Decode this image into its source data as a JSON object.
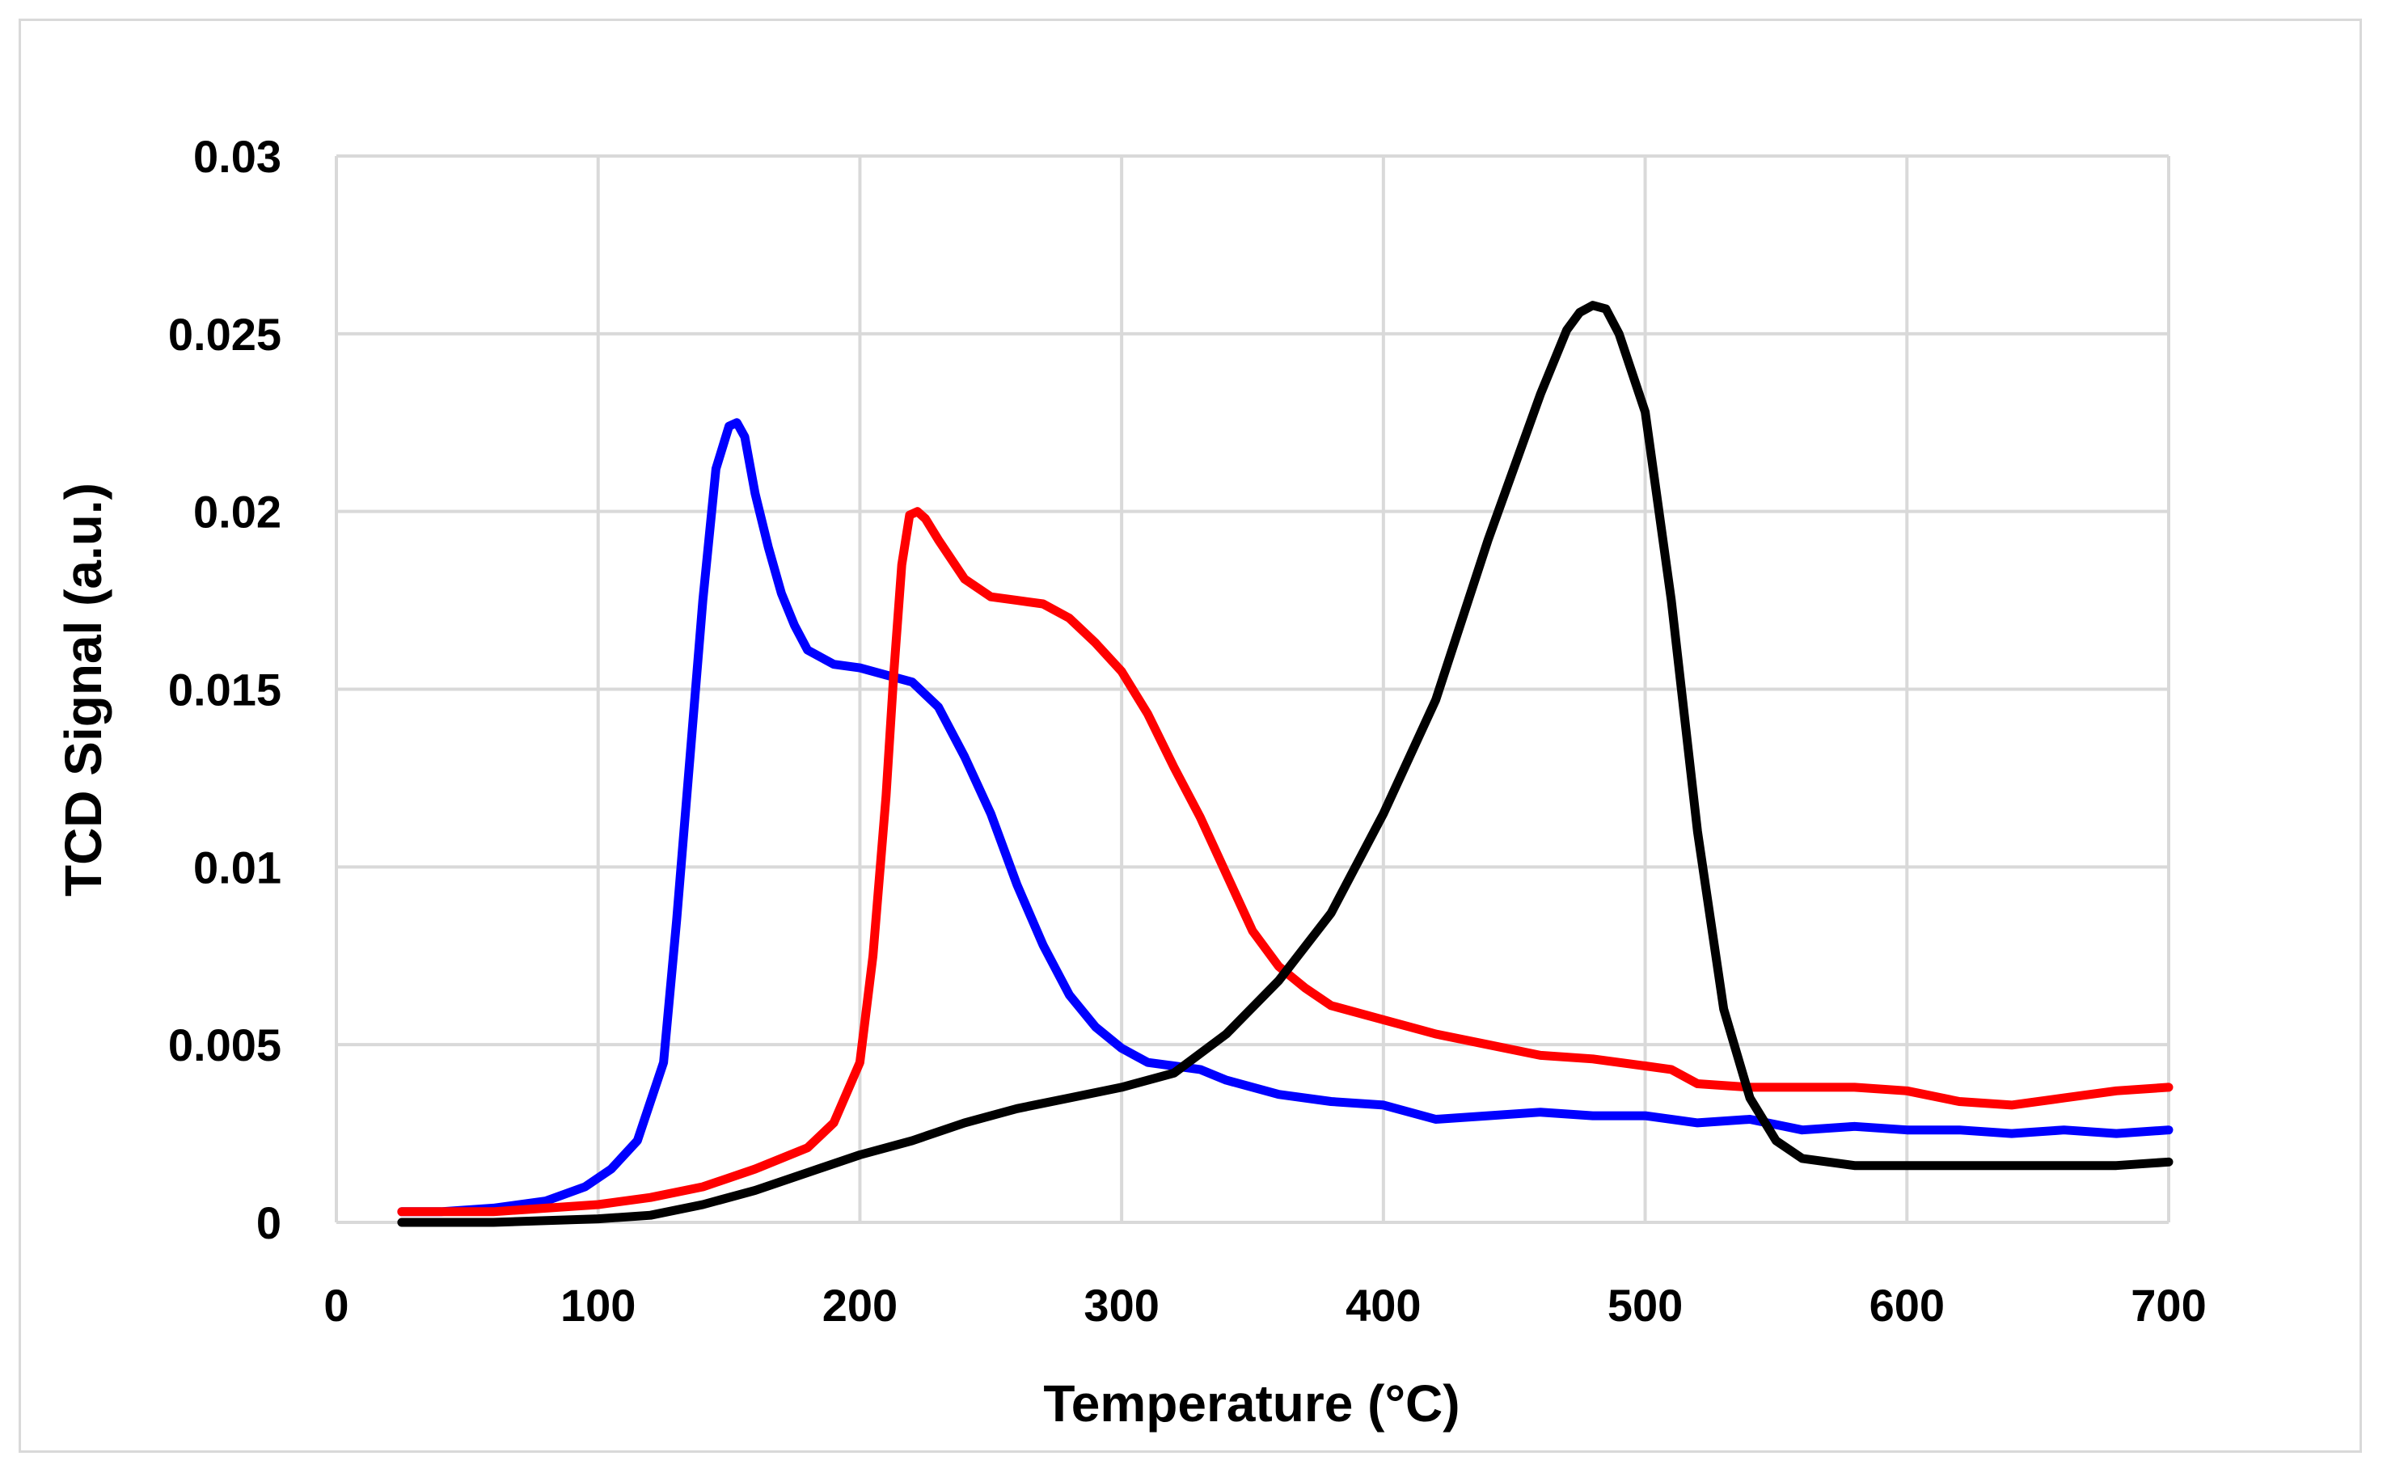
{
  "chart_data": {
    "type": "line",
    "title": "",
    "xlabel": "Temperature (°C)",
    "ylabel": "TCD Signal (a.u.)",
    "xlim": [
      0,
      700
    ],
    "ylim": [
      0,
      0.03
    ],
    "x_ticks": [
      0,
      100,
      200,
      300,
      400,
      500,
      600,
      700
    ],
    "x_tick_labels": [
      "0",
      "100",
      "200",
      "300",
      "400",
      "500",
      "600",
      "700"
    ],
    "y_ticks": [
      0,
      0.005,
      0.01,
      0.015,
      0.02,
      0.025,
      0.03
    ],
    "y_tick_labels": [
      "0",
      "0.005",
      "0.01",
      "0.015",
      "0.02",
      "0.025",
      "0.03"
    ],
    "grid": true,
    "legend": "none",
    "series": [
      {
        "name": "blue",
        "color": "#0000ff",
        "x": [
          25,
          40,
          60,
          80,
          95,
          105,
          115,
          125,
          130,
          135,
          140,
          145,
          150,
          153,
          156,
          160,
          165,
          170,
          175,
          180,
          190,
          200,
          210,
          220,
          230,
          240,
          250,
          260,
          270,
          280,
          290,
          300,
          310,
          320,
          330,
          340,
          360,
          380,
          400,
          420,
          440,
          460,
          480,
          500,
          520,
          540,
          560,
          580,
          600,
          620,
          640,
          660,
          680,
          700
        ],
        "y": [
          0.0003,
          0.0003,
          0.0004,
          0.0006,
          0.001,
          0.0015,
          0.0023,
          0.0045,
          0.0085,
          0.013,
          0.0175,
          0.0212,
          0.0224,
          0.0225,
          0.0221,
          0.0205,
          0.019,
          0.0177,
          0.0168,
          0.0161,
          0.0157,
          0.0156,
          0.0154,
          0.0152,
          0.0145,
          0.0131,
          0.0115,
          0.0095,
          0.0078,
          0.0064,
          0.0055,
          0.0049,
          0.0045,
          0.0044,
          0.0043,
          0.004,
          0.0036,
          0.0034,
          0.0033,
          0.0029,
          0.003,
          0.0031,
          0.003,
          0.003,
          0.0028,
          0.0029,
          0.0026,
          0.0027,
          0.0026,
          0.0026,
          0.0025,
          0.0026,
          0.0025,
          0.0026
        ]
      },
      {
        "name": "red",
        "color": "#ff0000",
        "x": [
          25,
          40,
          60,
          80,
          100,
          120,
          140,
          160,
          180,
          190,
          200,
          205,
          210,
          213,
          216,
          219,
          222,
          225,
          230,
          240,
          250,
          260,
          270,
          280,
          290,
          300,
          310,
          320,
          330,
          340,
          350,
          360,
          370,
          380,
          400,
          420,
          440,
          460,
          480,
          500,
          510,
          520,
          540,
          560,
          580,
          600,
          620,
          640,
          660,
          680,
          700
        ],
        "y": [
          0.0003,
          0.0003,
          0.0003,
          0.0004,
          0.0005,
          0.0007,
          0.001,
          0.0015,
          0.0021,
          0.0028,
          0.0045,
          0.0075,
          0.012,
          0.0155,
          0.0185,
          0.0199,
          0.02,
          0.0198,
          0.0192,
          0.0181,
          0.0176,
          0.0175,
          0.0174,
          0.017,
          0.0163,
          0.0155,
          0.0143,
          0.0128,
          0.0114,
          0.0098,
          0.0082,
          0.0072,
          0.0066,
          0.0061,
          0.0057,
          0.0053,
          0.005,
          0.0047,
          0.0046,
          0.0044,
          0.0043,
          0.0039,
          0.0038,
          0.0038,
          0.0038,
          0.0037,
          0.0034,
          0.0033,
          0.0035,
          0.0037,
          0.0038
        ]
      },
      {
        "name": "black",
        "color": "#000000",
        "x": [
          25,
          60,
          100,
          120,
          140,
          160,
          180,
          200,
          220,
          240,
          260,
          280,
          300,
          320,
          340,
          360,
          380,
          400,
          420,
          440,
          460,
          470,
          475,
          480,
          485,
          490,
          500,
          510,
          520,
          530,
          540,
          550,
          560,
          580,
          600,
          620,
          640,
          660,
          680,
          700
        ],
        "y": [
          0.0,
          0.0,
          0.0001,
          0.0002,
          0.0005,
          0.0009,
          0.0014,
          0.0019,
          0.0023,
          0.0028,
          0.0032,
          0.0035,
          0.0038,
          0.0042,
          0.0053,
          0.0068,
          0.0087,
          0.0115,
          0.0147,
          0.0192,
          0.0233,
          0.0251,
          0.0256,
          0.0258,
          0.0257,
          0.025,
          0.0228,
          0.0175,
          0.011,
          0.006,
          0.0035,
          0.0023,
          0.0018,
          0.0016,
          0.0016,
          0.0016,
          0.0016,
          0.0016,
          0.0016,
          0.0017
        ]
      }
    ]
  }
}
